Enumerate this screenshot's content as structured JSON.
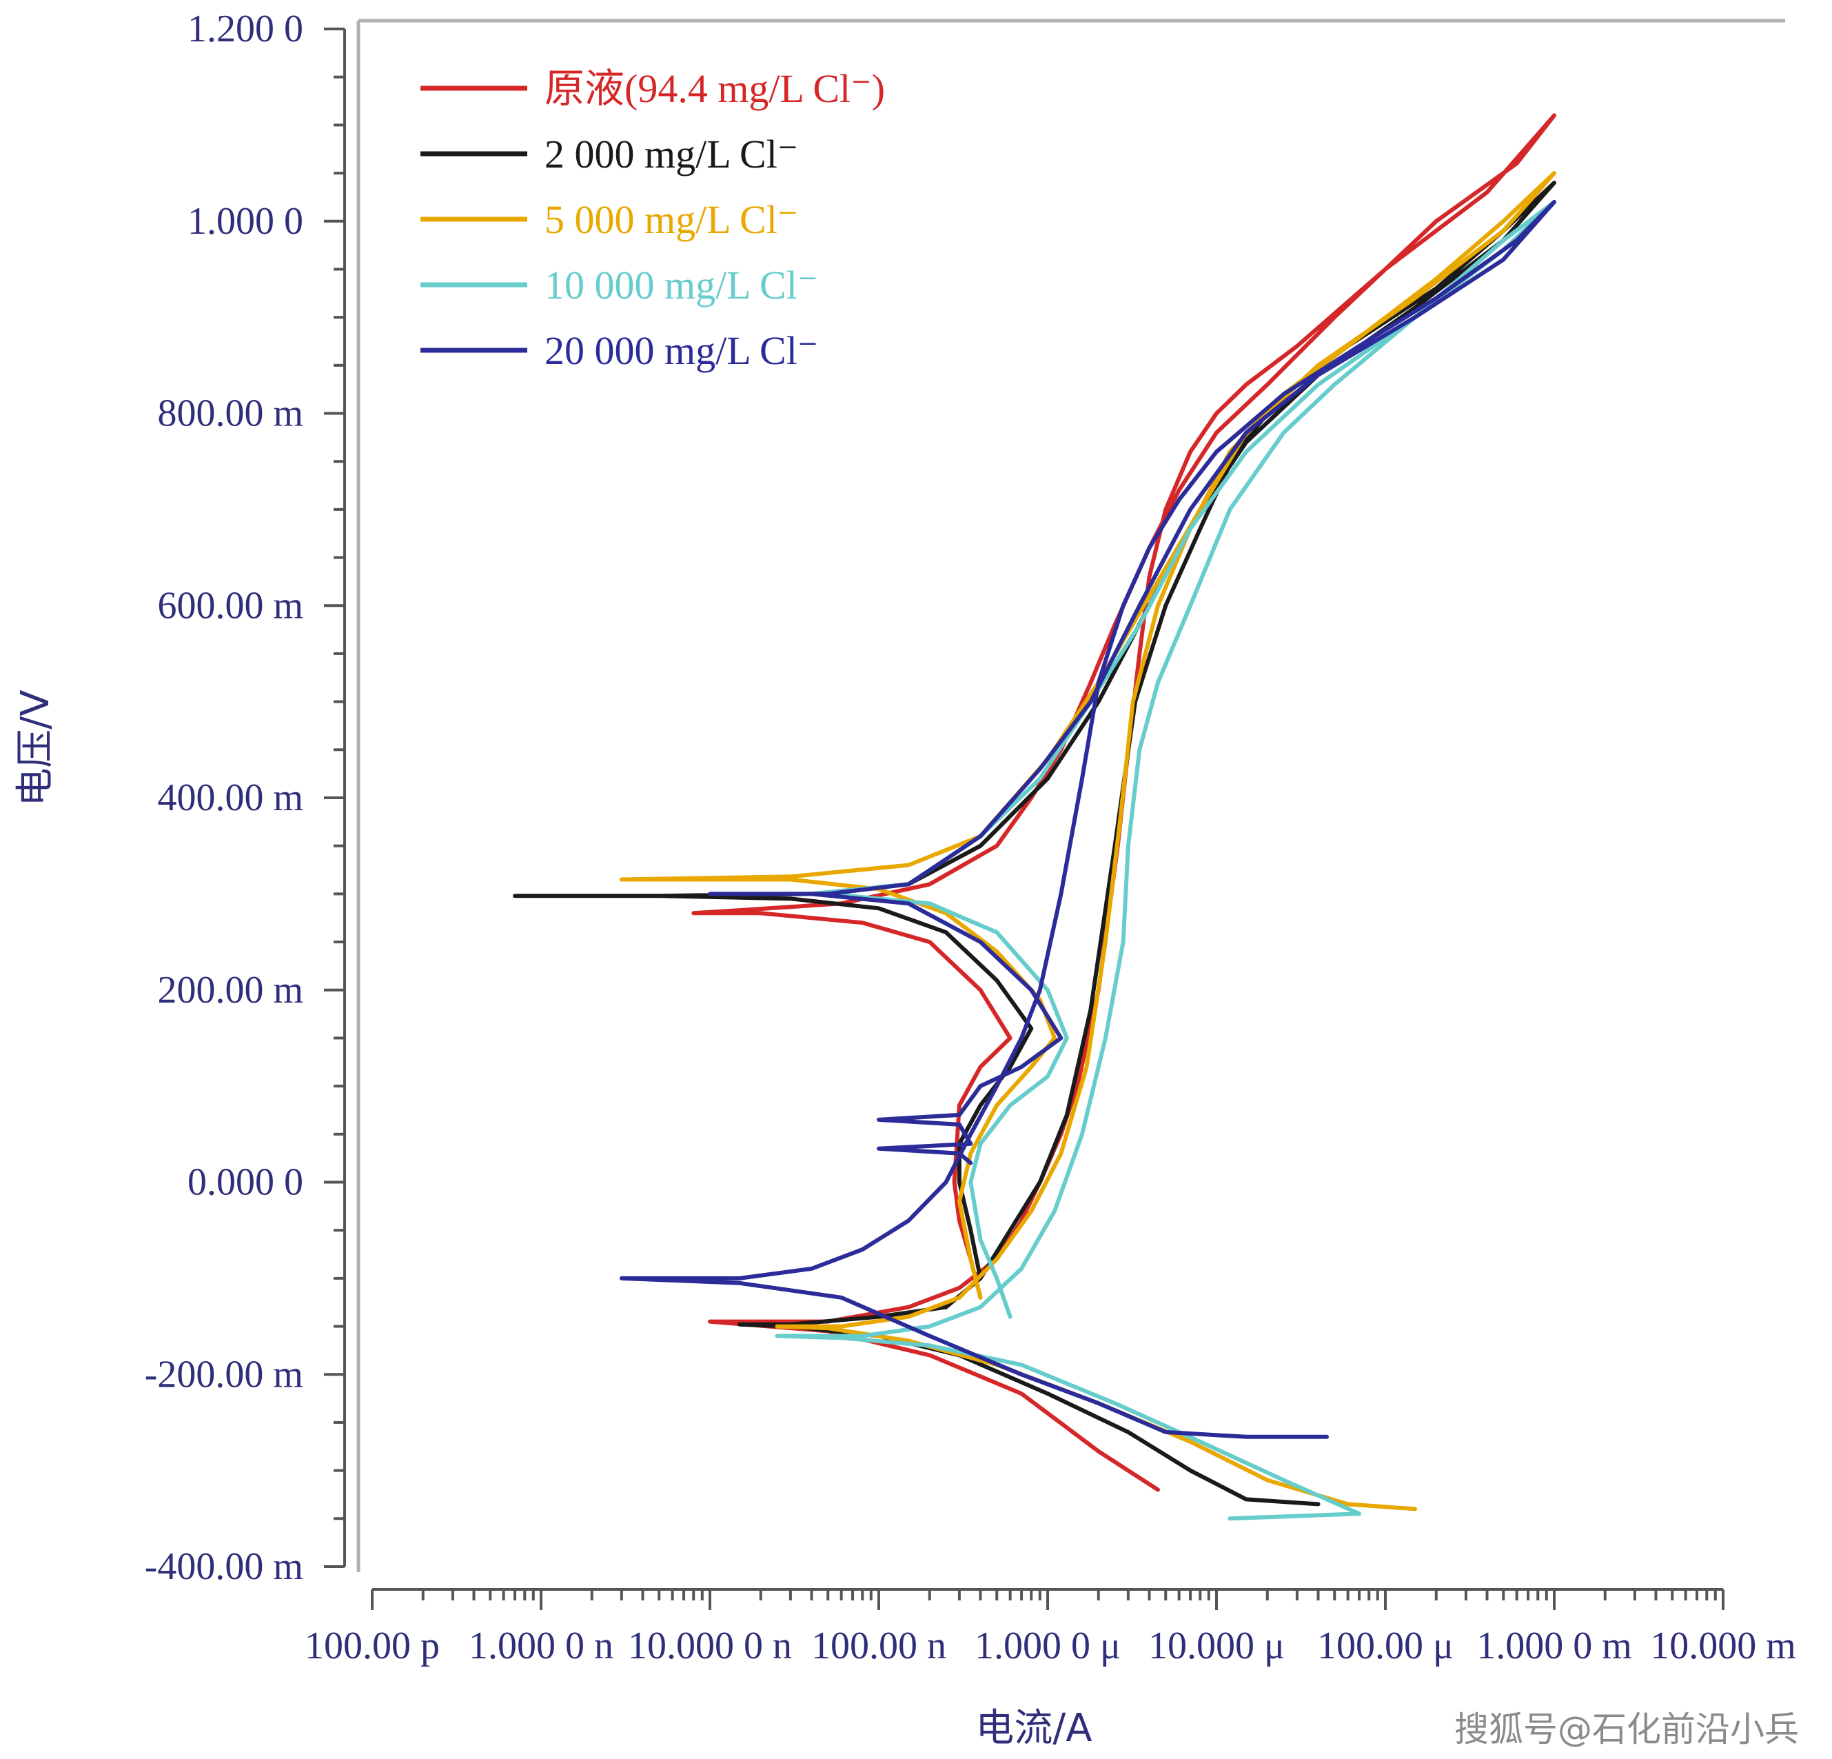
{
  "chart_data": {
    "type": "line",
    "xlabel": "电流/A",
    "ylabel": "电压/V",
    "x_scale": "log",
    "x_ticks": [
      {
        "value": 1e-10,
        "label": "100.00 p"
      },
      {
        "value": 1e-09,
        "label": "1.000 0 n"
      },
      {
        "value": 1e-08,
        "label": "10.000 0 n"
      },
      {
        "value": 1e-07,
        "label": "100.00 n"
      },
      {
        "value": 1e-06,
        "label": "1.000 0 μ"
      },
      {
        "value": 1e-05,
        "label": "10.000 μ"
      },
      {
        "value": 0.0001,
        "label": "100.00 μ"
      },
      {
        "value": 0.001,
        "label": "1.000 0 m"
      },
      {
        "value": 0.01,
        "label": "10.000 m"
      }
    ],
    "y_ticks": [
      {
        "value": 1.2,
        "label": "1.200 0"
      },
      {
        "value": 1.0,
        "label": "1.000 0"
      },
      {
        "value": 0.8,
        "label": "800.00 m"
      },
      {
        "value": 0.6,
        "label": "600.00 m"
      },
      {
        "value": 0.4,
        "label": "400.00 m"
      },
      {
        "value": 0.2,
        "label": "200.00 m"
      },
      {
        "value": 0.0,
        "label": "0.000 0"
      },
      {
        "value": -0.2,
        "label": "-200.00 m"
      },
      {
        "value": -0.4,
        "label": "-400.00 m"
      }
    ],
    "xlim": [
      1e-10,
      0.01
    ],
    "ylim": [
      -0.4,
      1.2
    ],
    "legend_position": "top-left",
    "series": [
      {
        "name": "原液(94.4 mg/L Cl⁻)",
        "color": "#d62728",
        "points": [
          [
            4.5e-06,
            -0.32
          ],
          [
            2e-06,
            -0.28
          ],
          [
            7e-07,
            -0.22
          ],
          [
            2e-07,
            -0.18
          ],
          [
            5e-08,
            -0.155
          ],
          [
            1e-08,
            -0.145
          ],
          [
            5e-08,
            -0.145
          ],
          [
            1.5e-07,
            -0.13
          ],
          [
            3e-07,
            -0.11
          ],
          [
            5e-07,
            -0.08
          ],
          [
            7e-07,
            -0.04
          ],
          [
            9e-07,
            0.0
          ],
          [
            1.2e-06,
            0.05
          ],
          [
            1.5e-06,
            0.1
          ],
          [
            2e-06,
            0.2
          ],
          [
            2.6e-06,
            0.35
          ],
          [
            3e-06,
            0.45
          ],
          [
            3.5e-06,
            0.55
          ],
          [
            4e-06,
            0.63
          ],
          [
            5e-06,
            0.7
          ],
          [
            7e-06,
            0.76
          ],
          [
            1e-05,
            0.8
          ],
          [
            1.5e-05,
            0.83
          ],
          [
            3e-05,
            0.87
          ],
          [
            0.0001,
            0.95
          ],
          [
            0.0004,
            1.03
          ],
          [
            0.001,
            1.11
          ],
          [
            0.0006,
            1.06
          ],
          [
            0.0002,
            1.0
          ],
          [
            5e-05,
            0.9
          ],
          [
            2e-05,
            0.83
          ],
          [
            1e-05,
            0.78
          ],
          [
            6e-06,
            0.72
          ],
          [
            4e-06,
            0.66
          ],
          [
            2.5e-06,
            0.58
          ],
          [
            1.8e-06,
            0.52
          ],
          [
            1.2e-06,
            0.45
          ],
          [
            8e-07,
            0.4
          ],
          [
            5e-07,
            0.35
          ],
          [
            2e-07,
            0.31
          ],
          [
            6e-08,
            0.29
          ],
          [
            1.5e-08,
            0.283
          ],
          [
            8e-09,
            0.28
          ],
          [
            2e-08,
            0.28
          ],
          [
            8e-08,
            0.27
          ],
          [
            2e-07,
            0.25
          ],
          [
            4e-07,
            0.2
          ],
          [
            6e-07,
            0.15
          ],
          [
            4e-07,
            0.12
          ],
          [
            3e-07,
            0.08
          ],
          [
            2.8e-07,
            0.0
          ],
          [
            3e-07,
            -0.04
          ],
          [
            3.5e-07,
            -0.08
          ],
          [
            4e-07,
            -0.12
          ]
        ]
      },
      {
        "name": "2 000 mg/L Cl⁻",
        "color": "#1a1a1a",
        "points": [
          [
            4e-05,
            -0.335
          ],
          [
            1.5e-05,
            -0.33
          ],
          [
            7e-06,
            -0.3
          ],
          [
            3e-06,
            -0.26
          ],
          [
            1e-06,
            -0.22
          ],
          [
            3e-07,
            -0.18
          ],
          [
            1e-07,
            -0.16
          ],
          [
            3e-08,
            -0.15
          ],
          [
            1.5e-08,
            -0.148
          ],
          [
            3e-08,
            -0.148
          ],
          [
            1e-07,
            -0.14
          ],
          [
            2.5e-07,
            -0.13
          ],
          [
            4e-07,
            -0.1
          ],
          [
            6e-07,
            -0.05
          ],
          [
            9e-07,
            0.0
          ],
          [
            1.3e-06,
            0.07
          ],
          [
            1.8e-06,
            0.18
          ],
          [
            2.5e-06,
            0.35
          ],
          [
            3.3e-06,
            0.5
          ],
          [
            5e-06,
            0.6
          ],
          [
            8e-06,
            0.68
          ],
          [
            1.3e-05,
            0.76
          ],
          [
            2.5e-05,
            0.82
          ],
          [
            6e-05,
            0.87
          ],
          [
            0.0002,
            0.93
          ],
          [
            0.0005,
            0.99
          ],
          [
            0.001,
            1.04
          ],
          [
            0.0005,
            0.98
          ],
          [
            0.00015,
            0.91
          ],
          [
            4e-05,
            0.84
          ],
          [
            1.5e-05,
            0.77
          ],
          [
            8e-06,
            0.7
          ],
          [
            4e-06,
            0.6
          ],
          [
            2e-06,
            0.5
          ],
          [
            1e-06,
            0.42
          ],
          [
            4e-07,
            0.35
          ],
          [
            1.5e-07,
            0.31
          ],
          [
            4e-08,
            0.3
          ],
          [
            5e-09,
            0.298
          ],
          [
            7e-10,
            0.298
          ],
          [
            5e-09,
            0.298
          ],
          [
            3e-08,
            0.295
          ],
          [
            1e-07,
            0.285
          ],
          [
            2.5e-07,
            0.26
          ],
          [
            5e-07,
            0.21
          ],
          [
            8e-07,
            0.16
          ],
          [
            6e-07,
            0.12
          ],
          [
            4e-07,
            0.08
          ],
          [
            3e-07,
            0.04
          ],
          [
            3e-07,
            0.0
          ],
          [
            3.5e-07,
            -0.05
          ],
          [
            4e-07,
            -0.1
          ]
        ]
      },
      {
        "name": "5 000 mg/L Cl⁻",
        "color": "#e8a800",
        "points": [
          [
            0.00015,
            -0.34
          ],
          [
            6e-05,
            -0.335
          ],
          [
            2e-05,
            -0.31
          ],
          [
            7e-06,
            -0.27
          ],
          [
            2e-06,
            -0.23
          ],
          [
            5e-07,
            -0.19
          ],
          [
            1.5e-07,
            -0.165
          ],
          [
            5e-08,
            -0.152
          ],
          [
            2.5e-08,
            -0.15
          ],
          [
            6e-08,
            -0.15
          ],
          [
            1.5e-07,
            -0.14
          ],
          [
            3e-07,
            -0.12
          ],
          [
            5e-07,
            -0.08
          ],
          [
            8e-07,
            -0.03
          ],
          [
            1.2e-06,
            0.03
          ],
          [
            1.7e-06,
            0.12
          ],
          [
            2.2e-06,
            0.25
          ],
          [
            2.7e-06,
            0.38
          ],
          [
            3.2e-06,
            0.5
          ],
          [
            4.5e-06,
            0.6
          ],
          [
            7e-06,
            0.68
          ],
          [
            1.2e-05,
            0.76
          ],
          [
            2.5e-05,
            0.82
          ],
          [
            6e-05,
            0.87
          ],
          [
            0.0002,
            0.94
          ],
          [
            0.0005,
            1.0
          ],
          [
            0.001,
            1.05
          ],
          [
            0.0005,
            0.99
          ],
          [
            0.00015,
            0.92
          ],
          [
            4e-05,
            0.85
          ],
          [
            1.5e-05,
            0.78
          ],
          [
            8e-06,
            0.7
          ],
          [
            4e-06,
            0.61
          ],
          [
            2e-06,
            0.52
          ],
          [
            1e-06,
            0.44
          ],
          [
            4e-07,
            0.36
          ],
          [
            1.5e-07,
            0.33
          ],
          [
            3e-08,
            0.318
          ],
          [
            3e-09,
            0.315
          ],
          [
            3e-08,
            0.315
          ],
          [
            1e-07,
            0.305
          ],
          [
            2.5e-07,
            0.28
          ],
          [
            5e-07,
            0.24
          ],
          [
            9e-07,
            0.19
          ],
          [
            1.1e-06,
            0.15
          ],
          [
            8e-07,
            0.12
          ],
          [
            5e-07,
            0.08
          ],
          [
            3.5e-07,
            0.03
          ],
          [
            3e-07,
            -0.02
          ],
          [
            3.5e-07,
            -0.08
          ],
          [
            4e-07,
            -0.12
          ]
        ]
      },
      {
        "name": "10 000 mg/L Cl⁻",
        "color": "#66cccc",
        "points": [
          [
            1.2e-05,
            -0.35
          ],
          [
            7e-05,
            -0.345
          ],
          [
            2.5e-05,
            -0.31
          ],
          [
            8e-06,
            -0.27
          ],
          [
            2.5e-06,
            -0.23
          ],
          [
            7e-07,
            -0.19
          ],
          [
            2e-07,
            -0.17
          ],
          [
            6e-08,
            -0.162
          ],
          [
            2.5e-08,
            -0.16
          ],
          [
            8e-08,
            -0.16
          ],
          [
            2e-07,
            -0.15
          ],
          [
            4e-07,
            -0.13
          ],
          [
            7e-07,
            -0.09
          ],
          [
            1.1e-06,
            -0.03
          ],
          [
            1.6e-06,
            0.05
          ],
          [
            2.2e-06,
            0.15
          ],
          [
            2.8e-06,
            0.25
          ],
          [
            3e-06,
            0.35
          ],
          [
            3.5e-06,
            0.45
          ],
          [
            4.5e-06,
            0.52
          ],
          [
            7e-06,
            0.6
          ],
          [
            1.2e-05,
            0.7
          ],
          [
            2.5e-05,
            0.78
          ],
          [
            5e-05,
            0.83
          ],
          [
            0.00015,
            0.9
          ],
          [
            0.0005,
            0.98
          ],
          [
            0.001,
            1.02
          ],
          [
            0.0005,
            0.97
          ],
          [
            0.00015,
            0.9
          ],
          [
            4e-05,
            0.83
          ],
          [
            1.5e-05,
            0.76
          ],
          [
            7e-06,
            0.68
          ],
          [
            3.5e-06,
            0.58
          ],
          [
            1.8e-06,
            0.5
          ],
          [
            9e-07,
            0.42
          ],
          [
            4e-07,
            0.36
          ],
          [
            1.5e-07,
            0.31
          ],
          [
            4e-08,
            0.3
          ],
          [
            1.5e-08,
            0.3
          ],
          [
            5e-08,
            0.3
          ],
          [
            2e-07,
            0.29
          ],
          [
            5e-07,
            0.26
          ],
          [
            1e-06,
            0.2
          ],
          [
            1.3e-06,
            0.15
          ],
          [
            1e-06,
            0.11
          ],
          [
            6e-07,
            0.08
          ],
          [
            4e-07,
            0.04
          ],
          [
            3.5e-07,
            0.0
          ],
          [
            4e-07,
            -0.06
          ],
          [
            5e-07,
            -0.1
          ],
          [
            6e-07,
            -0.14
          ]
        ]
      },
      {
        "name": "20 000 mg/L Cl⁻",
        "color": "#2b2b99",
        "points": [
          [
            4.5e-05,
            -0.265
          ],
          [
            1.5e-05,
            -0.265
          ],
          [
            5e-06,
            -0.26
          ],
          [
            2e-06,
            -0.23
          ],
          [
            7e-07,
            -0.2
          ],
          [
            2e-07,
            -0.16
          ],
          [
            6e-08,
            -0.12
          ],
          [
            1.5e-08,
            -0.105
          ],
          [
            3e-09,
            -0.1
          ],
          [
            1.5e-08,
            -0.1
          ],
          [
            4e-08,
            -0.09
          ],
          [
            8e-08,
            -0.07
          ],
          [
            1.5e-07,
            -0.04
          ],
          [
            2.5e-07,
            0.0
          ],
          [
            3.5e-07,
            0.05
          ],
          [
            5e-07,
            0.1
          ],
          [
            7e-07,
            0.15
          ],
          [
            9e-07,
            0.2
          ],
          [
            1.2e-06,
            0.3
          ],
          [
            1.6e-06,
            0.42
          ],
          [
            2e-06,
            0.52
          ],
          [
            2.8e-06,
            0.6
          ],
          [
            4e-06,
            0.66
          ],
          [
            6e-06,
            0.71
          ],
          [
            1e-05,
            0.76
          ],
          [
            2.5e-05,
            0.82
          ],
          [
            7e-05,
            0.87
          ],
          [
            0.0002,
            0.92
          ],
          [
            0.0006,
            0.98
          ],
          [
            0.001,
            1.02
          ],
          [
            0.0005,
            0.96
          ],
          [
            0.00015,
            0.9
          ],
          [
            4e-05,
            0.84
          ],
          [
            1.5e-05,
            0.78
          ],
          [
            7e-06,
            0.7
          ],
          [
            3.5e-06,
            0.6
          ],
          [
            1.8e-06,
            0.5
          ],
          [
            9e-07,
            0.43
          ],
          [
            4e-07,
            0.36
          ],
          [
            1.5e-07,
            0.31
          ],
          [
            5e-08,
            0.3
          ],
          [
            1e-08,
            0.3
          ],
          [
            4e-08,
            0.3
          ],
          [
            1.5e-07,
            0.29
          ],
          [
            4e-07,
            0.25
          ],
          [
            8e-07,
            0.2
          ],
          [
            1.2e-06,
            0.15
          ],
          [
            7e-07,
            0.12
          ],
          [
            4e-07,
            0.1
          ],
          [
            3e-07,
            0.07
          ],
          [
            1e-07,
            0.065
          ],
          [
            3e-07,
            0.06
          ],
          [
            3.5e-07,
            0.04
          ],
          [
            1e-07,
            0.035
          ],
          [
            3e-07,
            0.03
          ],
          [
            3.5e-07,
            0.02
          ]
        ]
      }
    ]
  },
  "watermark": "搜狐号@石化前沿小兵"
}
